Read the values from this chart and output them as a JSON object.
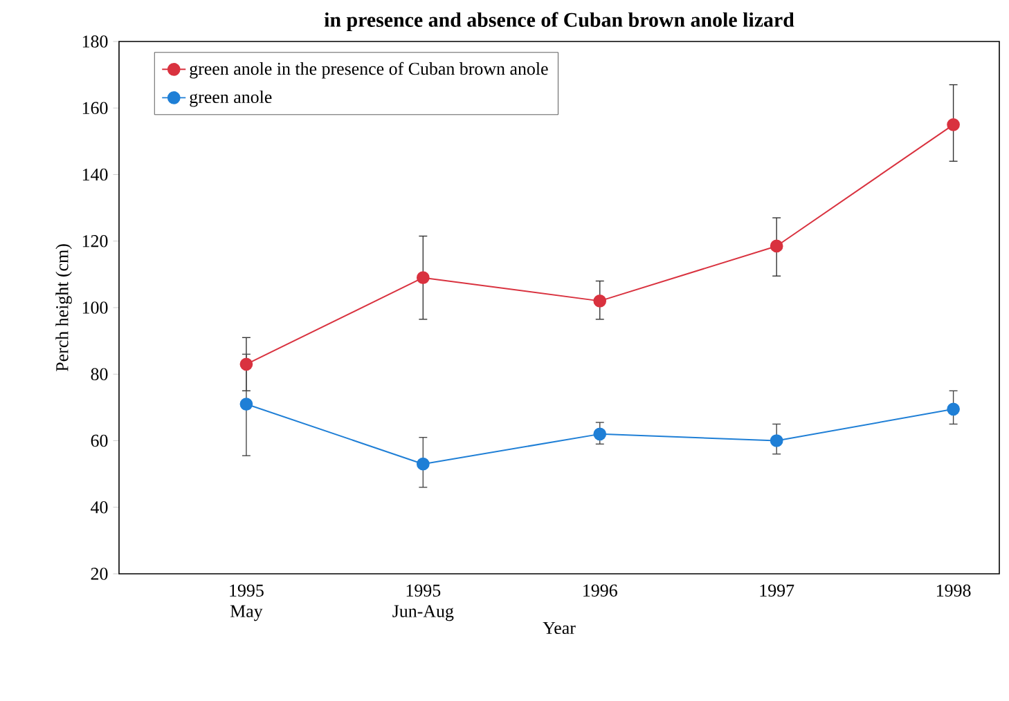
{
  "chart_data": {
    "type": "line",
    "title": "in presence and absence of Cuban brown anole lizard",
    "xlabel": "Year",
    "ylabel": "Perch height (cm)",
    "categories": [
      "1995 May",
      "1995 Jun-Aug",
      "1996",
      "1997",
      "1998"
    ],
    "series": [
      {
        "name": "green anole in the presence of Cuban brown anole",
        "color": "#d9323f",
        "values": [
          83,
          109,
          102,
          118.5,
          155
        ],
        "errors": [
          [
            75,
            91
          ],
          [
            96.5,
            121.5
          ],
          [
            96.5,
            108
          ],
          [
            109.5,
            127
          ],
          [
            144,
            167
          ]
        ]
      },
      {
        "name": "green anole",
        "color": "#1f7fd6",
        "values": [
          71,
          53,
          62,
          60,
          69.5
        ],
        "errors": [
          [
            55.5,
            86
          ],
          [
            46,
            61
          ],
          [
            59,
            65.5
          ],
          [
            56,
            65
          ],
          [
            65,
            75
          ]
        ]
      }
    ],
    "ylim": [
      20,
      180
    ],
    "yticks": [
      20,
      40,
      60,
      80,
      100,
      120,
      140,
      160,
      180
    ],
    "grid": false,
    "legend": "top left",
    "marker": "circle",
    "line_style": "solid"
  }
}
